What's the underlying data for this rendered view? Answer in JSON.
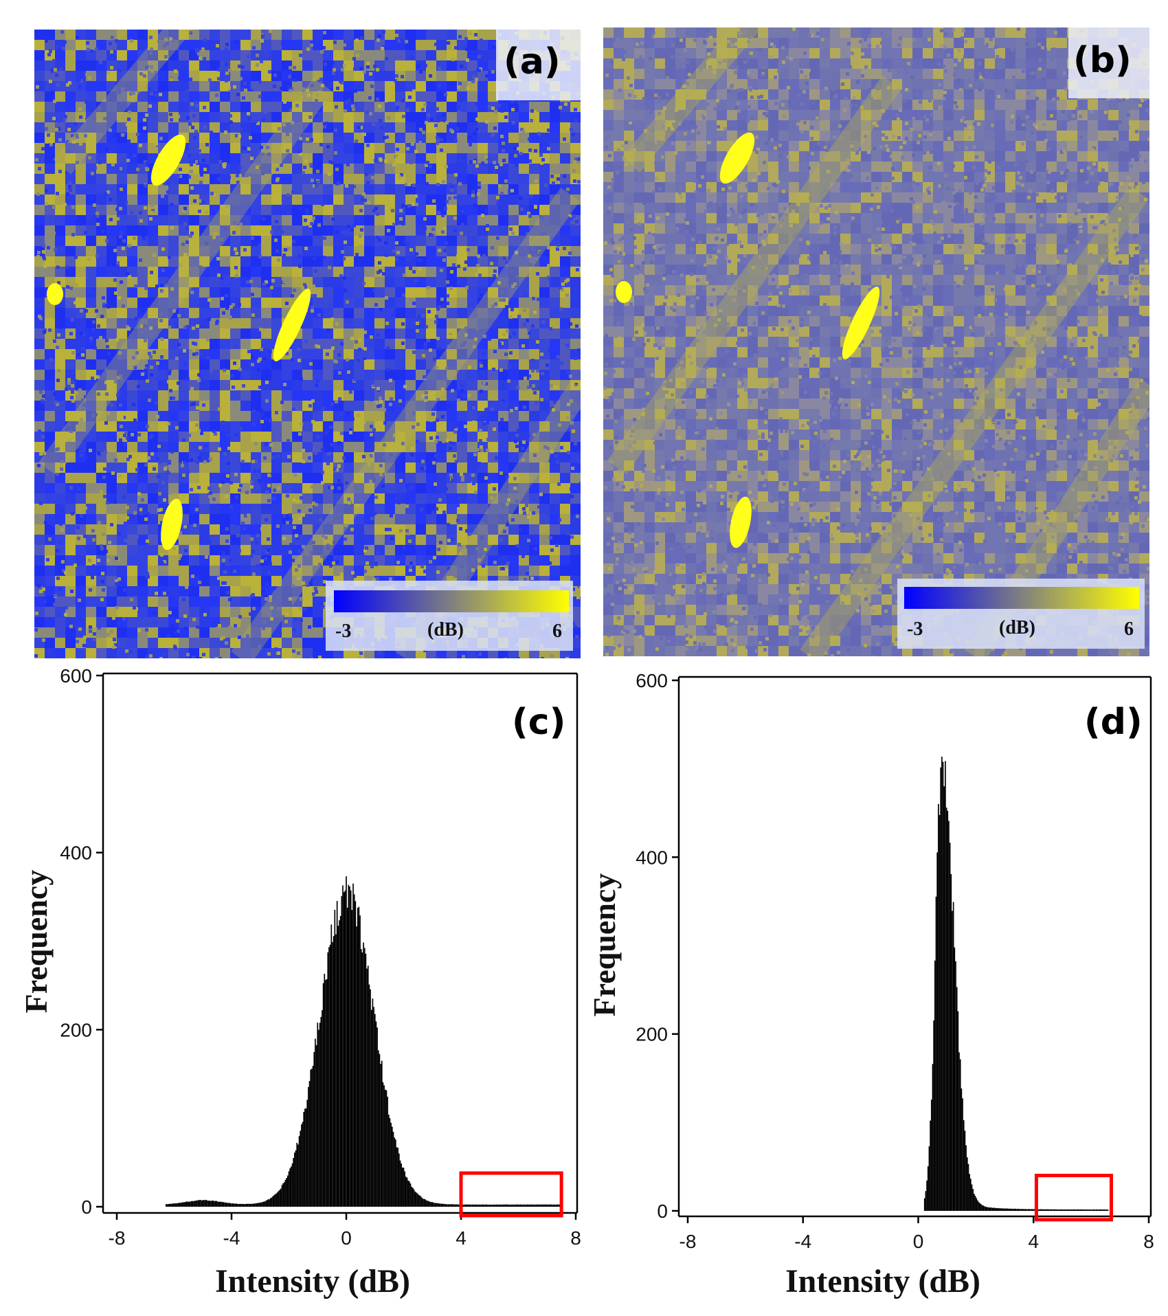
{
  "panels": {
    "a": {
      "label": "(a)"
    },
    "b": {
      "label": "(b)"
    },
    "c": {
      "label": "(c)"
    },
    "d": {
      "label": "(d)"
    }
  },
  "colorbar": {
    "min": "-3",
    "unit": "(dB)",
    "max": "6",
    "colors": [
      "#0000ff",
      "#ffff00"
    ]
  },
  "chart_data": [
    {
      "type": "bar",
      "panel": "(c)",
      "xlabel": "Intensity (dB)",
      "ylabel": "Frequency",
      "xlim": [
        -9,
        8
      ],
      "ylim": [
        0,
        600
      ],
      "xticks": [
        -8,
        -4,
        0,
        4,
        8
      ],
      "yticks": [
        0,
        200,
        400,
        600
      ],
      "distribution": {
        "shape": "gaussian",
        "center": 0.0,
        "peak": 355,
        "sigma": 0.95,
        "range": [
          -6.3,
          7.5
        ],
        "small_bump_center": -5.0,
        "small_bump_height": 5
      },
      "highlight_box": {
        "x": [
          4.0,
          7.5
        ],
        "y": [
          -10,
          38
        ],
        "color": "#ff0000"
      }
    },
    {
      "type": "bar",
      "panel": "(d)",
      "xlabel": "Intensity (dB)",
      "ylabel": "Frequency",
      "xlim": [
        -9,
        8
      ],
      "ylim": [
        0,
        600
      ],
      "xticks": [
        -8,
        -4,
        0,
        4,
        8
      ],
      "yticks": [
        0,
        200,
        400,
        600
      ],
      "distribution": {
        "shape": "skewed",
        "center": 0.8,
        "peak": 510,
        "sigma_left": 0.22,
        "sigma_right": 0.42,
        "range": [
          0.2,
          6.6
        ]
      },
      "highlight_box": {
        "x": [
          4.1,
          6.7
        ],
        "y": [
          -10,
          40
        ],
        "color": "#ff0000"
      }
    }
  ]
}
